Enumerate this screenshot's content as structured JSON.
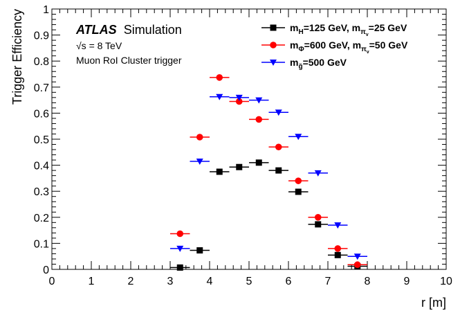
{
  "chart_data": {
    "type": "scatter",
    "xlabel": "r [m]",
    "ylabel": "Trigger Efficiency",
    "xlim": [
      0,
      10
    ],
    "ylim": [
      0,
      1
    ],
    "x_ticks": [
      "0",
      "1",
      "2",
      "3",
      "4",
      "5",
      "6",
      "7",
      "8",
      "9",
      "10"
    ],
    "y_ticks": [
      "0",
      "0.1",
      "0.2",
      "0.3",
      "0.4",
      "0.5",
      "0.6",
      "0.7",
      "0.8",
      "0.9",
      "1"
    ],
    "bin_half_width": 0.25,
    "legend_position": "top-right",
    "annotations": {
      "experiment": "ATLAS",
      "experiment_suffix": "Simulation",
      "energy": "√s = 8 TeV",
      "trigger": "Muon RoI Cluster trigger"
    },
    "series": [
      {
        "name": "mH=125 GeV, mπv=25 GeV",
        "label_parts": [
          "m",
          "H",
          "=125 GeV, m",
          "π",
          "v",
          "=25 GeV"
        ],
        "color": "#000000",
        "marker": "square",
        "x": [
          3.25,
          3.75,
          4.25,
          4.75,
          5.25,
          5.75,
          6.25,
          6.75,
          7.25,
          7.75
        ],
        "y": [
          0.007,
          0.073,
          0.375,
          0.393,
          0.41,
          0.38,
          0.298,
          0.173,
          0.055,
          0.012
        ]
      },
      {
        "name": "mΦ=600 GeV, mπv=50 GeV",
        "label_parts": [
          "m",
          "Φ",
          "=600 GeV, m",
          "π",
          "v",
          "=50 GeV"
        ],
        "color": "#ff0000",
        "marker": "circle",
        "x": [
          3.25,
          3.75,
          4.25,
          4.75,
          5.25,
          5.75,
          6.25,
          6.75,
          7.25,
          7.75
        ],
        "y": [
          0.137,
          0.508,
          0.737,
          0.645,
          0.576,
          0.47,
          0.34,
          0.2,
          0.08,
          0.018
        ]
      },
      {
        "name": "mg̃=500 GeV",
        "label_parts": [
          "m",
          "g̃",
          "=500 GeV"
        ],
        "color": "#0000ff",
        "marker": "triangle-down",
        "x": [
          3.25,
          3.75,
          4.25,
          4.75,
          5.25,
          5.75,
          6.25,
          6.75,
          7.25,
          7.75
        ],
        "y": [
          0.08,
          0.415,
          0.663,
          0.66,
          0.65,
          0.603,
          0.51,
          0.37,
          0.17,
          0.05
        ]
      }
    ]
  }
}
